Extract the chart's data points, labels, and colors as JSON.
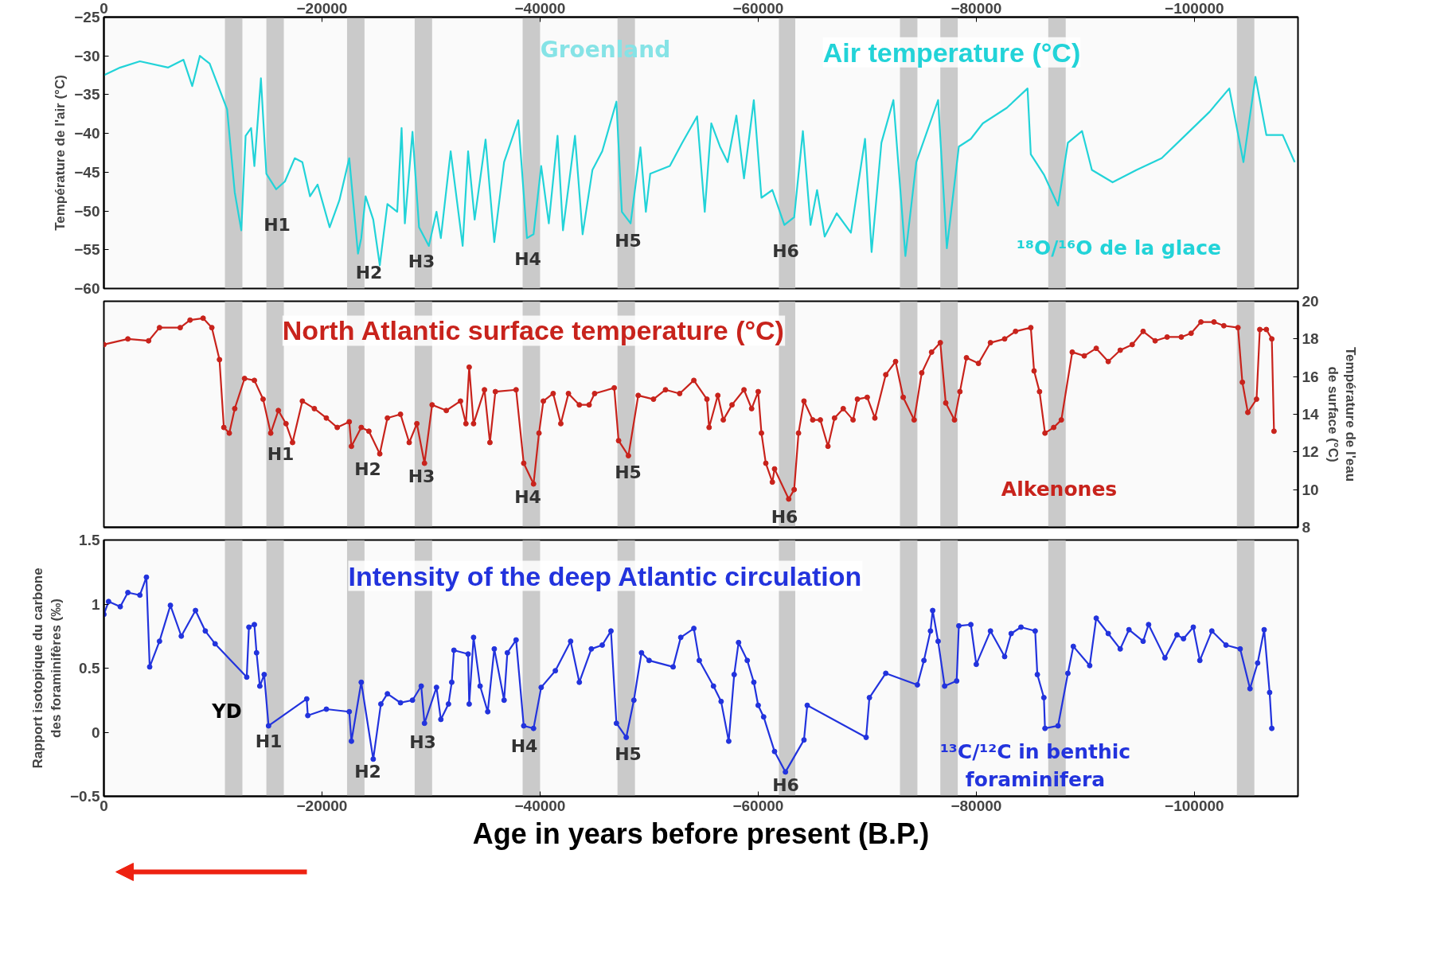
{
  "chart_data": [
    {
      "type": "line",
      "title": "Air temperature (°C)",
      "ylabel": "Température de l'air (°C)",
      "xlim": [
        0,
        -109500
      ],
      "xticks": [
        0,
        -20000,
        -40000,
        -60000,
        -80000,
        -100000
      ],
      "ylim": [
        -60,
        -25
      ],
      "yticks": [
        -60,
        -55,
        -50,
        -45,
        -40,
        -35,
        -30,
        -25
      ],
      "series": [
        {
          "name": "¹⁸O/¹⁶O de la glace",
          "color": "#22d3d8",
          "x": [
            0,
            -1500,
            -3300,
            -5900,
            -7300,
            -8100,
            -8800,
            -9700,
            -11300,
            -12000,
            -12600,
            -13000,
            -13500,
            -13800,
            -14400,
            -14900,
            -15800,
            -16600,
            -17500,
            -18200,
            -18900,
            -19600,
            -20700,
            -21600,
            -22500,
            -23300,
            -23600,
            -24000,
            -24700,
            -25300,
            -26000,
            -26900,
            -27300,
            -27600,
            -28300,
            -28900,
            -29800,
            -30500,
            -30900,
            -31800,
            -32900,
            -33400,
            -34000,
            -35000,
            -35800,
            -36700,
            -38000,
            -38800,
            -39400,
            -40100,
            -40800,
            -41600,
            -42100,
            -43200,
            -43900,
            -44800,
            -45700,
            -47000,
            -47500,
            -48300,
            -49200,
            -49700,
            -50100,
            -51900,
            -53000,
            -54400,
            -55100,
            -55700,
            -56500,
            -57200,
            -58000,
            -58700,
            -59600,
            -60300,
            -61300,
            -62400,
            -63300,
            -64100,
            -64800,
            -65400,
            -66100,
            -67200,
            -68500,
            -69800,
            -70400,
            -71300,
            -72400,
            -73500,
            -74500,
            -76500,
            -77300,
            -78400,
            -79500,
            -80600,
            -82800,
            -84700,
            -85000,
            -86200,
            -87500,
            -88400,
            -89700,
            -90600,
            -92500,
            -94700,
            -97000,
            -99200,
            -101400,
            -103200,
            -104500,
            -105600,
            -106600,
            -108100,
            -109200
          ],
          "values": [
            -32.5,
            -31.5,
            -30.7,
            -31.5,
            -30.5,
            -33.9,
            -30,
            -31,
            -36.9,
            -47.6,
            -52.5,
            -40.3,
            -39.3,
            -44.2,
            -32.9,
            -45.2,
            -47.2,
            -46.2,
            -43.2,
            -43.7,
            -48.1,
            -46.6,
            -52.1,
            -48.6,
            -43.2,
            -55.5,
            -53.5,
            -48.1,
            -51.1,
            -57,
            -49.1,
            -50.1,
            -39.3,
            -51.6,
            -39.8,
            -52.1,
            -54.5,
            -50.1,
            -53.5,
            -42.3,
            -54.5,
            -42.3,
            -51.1,
            -40.8,
            -54,
            -43.7,
            -38.3,
            -53.5,
            -53,
            -44.2,
            -51.6,
            -40.3,
            -52.5,
            -40.3,
            -53,
            -44.7,
            -42.3,
            -35.9,
            -50.1,
            -51.6,
            -41.8,
            -50.1,
            -45.2,
            -44.2,
            -41.3,
            -37.8,
            -50.1,
            -38.7,
            -41.7,
            -43.7,
            -37.7,
            -45.8,
            -35.7,
            -48.3,
            -47.3,
            -51.8,
            -50.8,
            -39.7,
            -51.8,
            -47.3,
            -53.3,
            -50.3,
            -52.8,
            -40.7,
            -55.3,
            -41.2,
            -35.7,
            -55.8,
            -43.7,
            -35.7,
            -54.8,
            -41.7,
            -40.7,
            -38.7,
            -36.7,
            -34.2,
            -42.7,
            -45.3,
            -49.3,
            -41.2,
            -39.7,
            -44.7,
            -46.3,
            -44.7,
            -43.2,
            -40.2,
            -37.2,
            -34.2,
            -43.7,
            -32.7,
            -40.2,
            -40.2,
            -43.7
          ]
        }
      ],
      "bands": [
        {
          "axis": "x",
          "from": -11100,
          "to": -12700,
          "color": "#c4c4c4"
        },
        {
          "axis": "x",
          "from": -14900,
          "to": -16500,
          "color": "#c4c4c4"
        },
        {
          "axis": "x",
          "from": -22300,
          "to": -23900,
          "color": "#c4c4c4"
        },
        {
          "axis": "x",
          "from": -28500,
          "to": -30100,
          "color": "#c4c4c4"
        },
        {
          "axis": "x",
          "from": -38400,
          "to": -40000,
          "color": "#c4c4c4"
        },
        {
          "axis": "x",
          "from": -47100,
          "to": -48700,
          "color": "#c4c4c4"
        },
        {
          "axis": "x",
          "from": -61900,
          "to": -63400,
          "color": "#c4c4c4"
        },
        {
          "axis": "x",
          "from": -73000,
          "to": -74600,
          "color": "#c4c4c4"
        },
        {
          "axis": "x",
          "from": -76700,
          "to": -78300,
          "color": "#c4c4c4"
        },
        {
          "axis": "x",
          "from": -86600,
          "to": -88200,
          "color": "#c4c4c4"
        },
        {
          "axis": "x",
          "from": -103900,
          "to": -105500,
          "color": "#c4c4c4"
        }
      ],
      "annotations": [
        "Groenland",
        "H1",
        "H2",
        "H3",
        "H4",
        "H5",
        "H6"
      ]
    },
    {
      "type": "line",
      "title": "North Atlantic surface temperature (°C)",
      "y2label": "Température de l'eau de surface (°C)",
      "xlim": [
        0,
        -109500
      ],
      "y2lim": [
        8,
        20
      ],
      "y2ticks": [
        8,
        10,
        12,
        14,
        16,
        18,
        20
      ],
      "tick_labels": "y",
      "marker": "circle",
      "series": [
        {
          "name": "Alkenones",
          "color": "#c8231c",
          "axis": "y2",
          "x": [
            0,
            -2200,
            -4100,
            -5100,
            -7000,
            -7900,
            -9100,
            -9900,
            -10600,
            -11000,
            -11500,
            -12000,
            -12900,
            -13800,
            -14600,
            -15300,
            -16000,
            -16700,
            -17300,
            -18200,
            -19300,
            -20400,
            -21400,
            -22500,
            -22700,
            -23600,
            -24300,
            -25300,
            -26000,
            -27200,
            -28000,
            -28700,
            -29400,
            -30100,
            -31400,
            -32700,
            -33200,
            -33500,
            -33900,
            -34900,
            -35400,
            -35900,
            -37800,
            -38500,
            -39400,
            -39900,
            -40300,
            -41200,
            -41900,
            -42600,
            -43600,
            -44500,
            -45000,
            -46800,
            -47200,
            -48100,
            -49000,
            -50400,
            -51500,
            -52800,
            -54100,
            -55300,
            -55500,
            -56300,
            -56800,
            -57600,
            -58700,
            -59400,
            -60000,
            -60300,
            -60700,
            -61300,
            -61500,
            -62800,
            -63300,
            -63700,
            -64200,
            -65000,
            -65700,
            -66400,
            -67000,
            -67800,
            -68700,
            -69100,
            -70000,
            -70700,
            -71700,
            -72600,
            -73300,
            -74300,
            -75000,
            -75900,
            -76700,
            -77200,
            -78000,
            -78500,
            -79100,
            -80200,
            -81300,
            -82600,
            -83600,
            -85000,
            -85300,
            -85800,
            -86300,
            -87100,
            -87800,
            -88800,
            -89900,
            -91000,
            -92100,
            -93200,
            -94300,
            -95300,
            -96400,
            -97500,
            -98800,
            -99700,
            -100600,
            -101800,
            -102700,
            -104000,
            -104400,
            -104900,
            -105700,
            -106000,
            -106600,
            -107100,
            -107300
          ],
          "values": [
            17.7,
            18,
            17.9,
            18.6,
            18.6,
            19.0,
            19.1,
            18.6,
            16.9,
            13.3,
            13.0,
            14.3,
            15.9,
            15.8,
            14.8,
            13.0,
            14.2,
            13.5,
            12.5,
            14.7,
            14.3,
            13.8,
            13.3,
            13.6,
            12.3,
            13.3,
            13.1,
            11.9,
            13.8,
            14.0,
            12.5,
            13.5,
            11.4,
            14.5,
            14.2,
            14.7,
            13.5,
            16.5,
            13.5,
            15.3,
            12.5,
            15.2,
            15.3,
            11.4,
            10.3,
            13.0,
            14.7,
            15.1,
            13.5,
            15.1,
            14.5,
            14.5,
            15.1,
            15.4,
            12.6,
            11.8,
            15.0,
            14.8,
            15.3,
            15.1,
            15.8,
            14.8,
            13.3,
            15.0,
            13.7,
            14.5,
            15.3,
            14.3,
            15.2,
            13.0,
            11.4,
            10.4,
            11.1,
            9.5,
            10.0,
            13.0,
            14.7,
            13.7,
            13.7,
            12.3,
            13.8,
            14.3,
            13.7,
            14.8,
            14.9,
            13.8,
            16.1,
            16.8,
            14.9,
            13.7,
            16.2,
            17.3,
            17.8,
            14.6,
            13.7,
            15.2,
            17.0,
            16.7,
            17.8,
            18.0,
            18.4,
            18.6,
            16.3,
            15.2,
            13.0,
            13.3,
            13.7,
            17.3,
            17.1,
            17.5,
            16.8,
            17.4,
            17.7,
            18.4,
            17.9,
            18.1,
            18.1,
            18.3,
            18.9,
            18.9,
            18.7,
            18.6,
            15.7,
            14.1,
            14.8,
            18.5,
            18.5,
            18.0,
            13.1
          ]
        }
      ],
      "bands": [
        {
          "axis": "x",
          "from": -11100,
          "to": -12700,
          "color": "#c4c4c4"
        },
        {
          "axis": "x",
          "from": -14900,
          "to": -16500,
          "color": "#c4c4c4"
        },
        {
          "axis": "x",
          "from": -22300,
          "to": -23900,
          "color": "#c4c4c4"
        },
        {
          "axis": "x",
          "from": -28500,
          "to": -30100,
          "color": "#c4c4c4"
        },
        {
          "axis": "x",
          "from": -38400,
          "to": -40000,
          "color": "#c4c4c4"
        },
        {
          "axis": "x",
          "from": -47100,
          "to": -48700,
          "color": "#c4c4c4"
        },
        {
          "axis": "x",
          "from": -61900,
          "to": -63400,
          "color": "#c4c4c4"
        },
        {
          "axis": "x",
          "from": -73000,
          "to": -74600,
          "color": "#c4c4c4"
        },
        {
          "axis": "x",
          "from": -76700,
          "to": -78300,
          "color": "#c4c4c4"
        },
        {
          "axis": "x",
          "from": -86600,
          "to": -88200,
          "color": "#c4c4c4"
        },
        {
          "axis": "x",
          "from": -103900,
          "to": -105500,
          "color": "#c4c4c4"
        }
      ],
      "annotations": [
        "H1",
        "H2",
        "H3",
        "H4",
        "H5",
        "H6"
      ]
    },
    {
      "type": "line",
      "title": "Intensity of the deep Atlantic circulation",
      "ylabel": "Rapport isotopique du carbone des foraminifères (‰)",
      "xlabel": "Age in years before present (B.P.)",
      "xlim": [
        0,
        -109500
      ],
      "xticks": [
        0,
        -20000,
        -40000,
        -60000,
        -80000,
        -100000
      ],
      "ylim": [
        -0.5,
        1.5
      ],
      "yticks": [
        -0.5,
        0,
        0.5,
        1,
        1.5
      ],
      "marker": "circle",
      "series": [
        {
          "name": "¹³C/¹²C in benthic foraminifera",
          "color": "#2233dd",
          "x": [
            0,
            -430,
            -1500,
            -2200,
            -3300,
            -3900,
            -4200,
            -5100,
            -6100,
            -7100,
            -8400,
            -9300,
            -10200,
            -13100,
            -13300,
            -13800,
            -14000,
            -14300,
            -14700,
            -15100,
            -18600,
            -18700,
            -20400,
            -22500,
            -22700,
            -23600,
            -24700,
            -25400,
            -26000,
            -27200,
            -28300,
            -29100,
            -29400,
            -30500,
            -30900,
            -31600,
            -31900,
            -32100,
            -33400,
            -33500,
            -33900,
            -34500,
            -35200,
            -35800,
            -36700,
            -37000,
            -37800,
            -38500,
            -39400,
            -40100,
            -41400,
            -42800,
            -43600,
            -44700,
            -45700,
            -46500,
            -47000,
            -47900,
            -48600,
            -49300,
            -50000,
            -52200,
            -52900,
            -54100,
            -54600,
            -55900,
            -56600,
            -57300,
            -57800,
            -58200,
            -59000,
            -59600,
            -60000,
            -60500,
            -61500,
            -62500,
            -64200,
            -64500,
            -69900,
            -70200,
            -71700,
            -74600,
            -75200,
            -75800,
            -76000,
            -76500,
            -77100,
            -78200,
            -78400,
            -79500,
            -80000,
            -81300,
            -82600,
            -83200,
            -84100,
            -85400,
            -85600,
            -86200,
            -86300,
            -87500,
            -88400,
            -88900,
            -90400,
            -91000,
            -92100,
            -93200,
            -94000,
            -95300,
            -95800,
            -97300,
            -98400,
            -99000,
            -99900,
            -100500,
            -101600,
            -102900,
            -104200,
            -105100,
            -105800,
            -106400,
            -106900,
            -107100
          ],
          "values": [
            0.92,
            1.02,
            0.98,
            1.09,
            1.07,
            1.21,
            0.51,
            0.71,
            0.99,
            0.75,
            0.95,
            0.79,
            0.69,
            0.43,
            0.82,
            0.84,
            0.62,
            0.36,
            0.45,
            0.05,
            0.26,
            0.13,
            0.18,
            0.16,
            -0.07,
            0.39,
            -0.21,
            0.22,
            0.3,
            0.23,
            0.25,
            0.36,
            0.07,
            0.35,
            0.1,
            0.22,
            0.39,
            0.64,
            0.61,
            0.22,
            0.74,
            0.36,
            0.16,
            0.65,
            0.25,
            0.62,
            0.72,
            0.05,
            0.03,
            0.35,
            0.48,
            0.71,
            0.39,
            0.65,
            0.68,
            0.79,
            0.07,
            -0.04,
            0.25,
            0.62,
            0.56,
            0.51,
            0.74,
            0.81,
            0.56,
            0.36,
            0.24,
            -0.07,
            0.45,
            0.7,
            0.56,
            0.39,
            0.21,
            0.12,
            -0.15,
            -0.31,
            -0.06,
            0.21,
            -0.04,
            0.27,
            0.46,
            0.37,
            0.56,
            0.79,
            0.95,
            0.71,
            0.36,
            0.4,
            0.83,
            0.84,
            0.53,
            0.79,
            0.59,
            0.77,
            0.82,
            0.79,
            0.45,
            0.27,
            0.03,
            0.05,
            0.46,
            0.67,
            0.52,
            0.89,
            0.77,
            0.65,
            0.8,
            0.71,
            0.84,
            0.58,
            0.76,
            0.73,
            0.82,
            0.56,
            0.79,
            0.68,
            0.65,
            0.34,
            0.54,
            0.8,
            0.31,
            0.03
          ]
        }
      ],
      "bands": [
        {
          "axis": "x",
          "from": -11100,
          "to": -12700,
          "color": "#c4c4c4"
        },
        {
          "axis": "x",
          "from": -14900,
          "to": -16500,
          "color": "#c4c4c4"
        },
        {
          "axis": "x",
          "from": -22300,
          "to": -23900,
          "color": "#c4c4c4"
        },
        {
          "axis": "x",
          "from": -28500,
          "to": -30100,
          "color": "#c4c4c4"
        },
        {
          "axis": "x",
          "from": -38400,
          "to": -40000,
          "color": "#c4c4c4"
        },
        {
          "axis": "x",
          "from": -47100,
          "to": -48700,
          "color": "#c4c4c4"
        },
        {
          "axis": "x",
          "from": -61900,
          "to": -63400,
          "color": "#c4c4c4"
        },
        {
          "axis": "x",
          "from": -73000,
          "to": -74600,
          "color": "#c4c4c4"
        },
        {
          "axis": "x",
          "from": -76700,
          "to": -78300,
          "color": "#c4c4c4"
        },
        {
          "axis": "x",
          "from": -86600,
          "to": -88200,
          "color": "#c4c4c4"
        },
        {
          "axis": "x",
          "from": -103900,
          "to": -105500,
          "color": "#c4c4c4"
        }
      ],
      "annotations": [
        "YD",
        "H1",
        "H2",
        "H3",
        "H4",
        "H5",
        "H6"
      ]
    }
  ]
}
